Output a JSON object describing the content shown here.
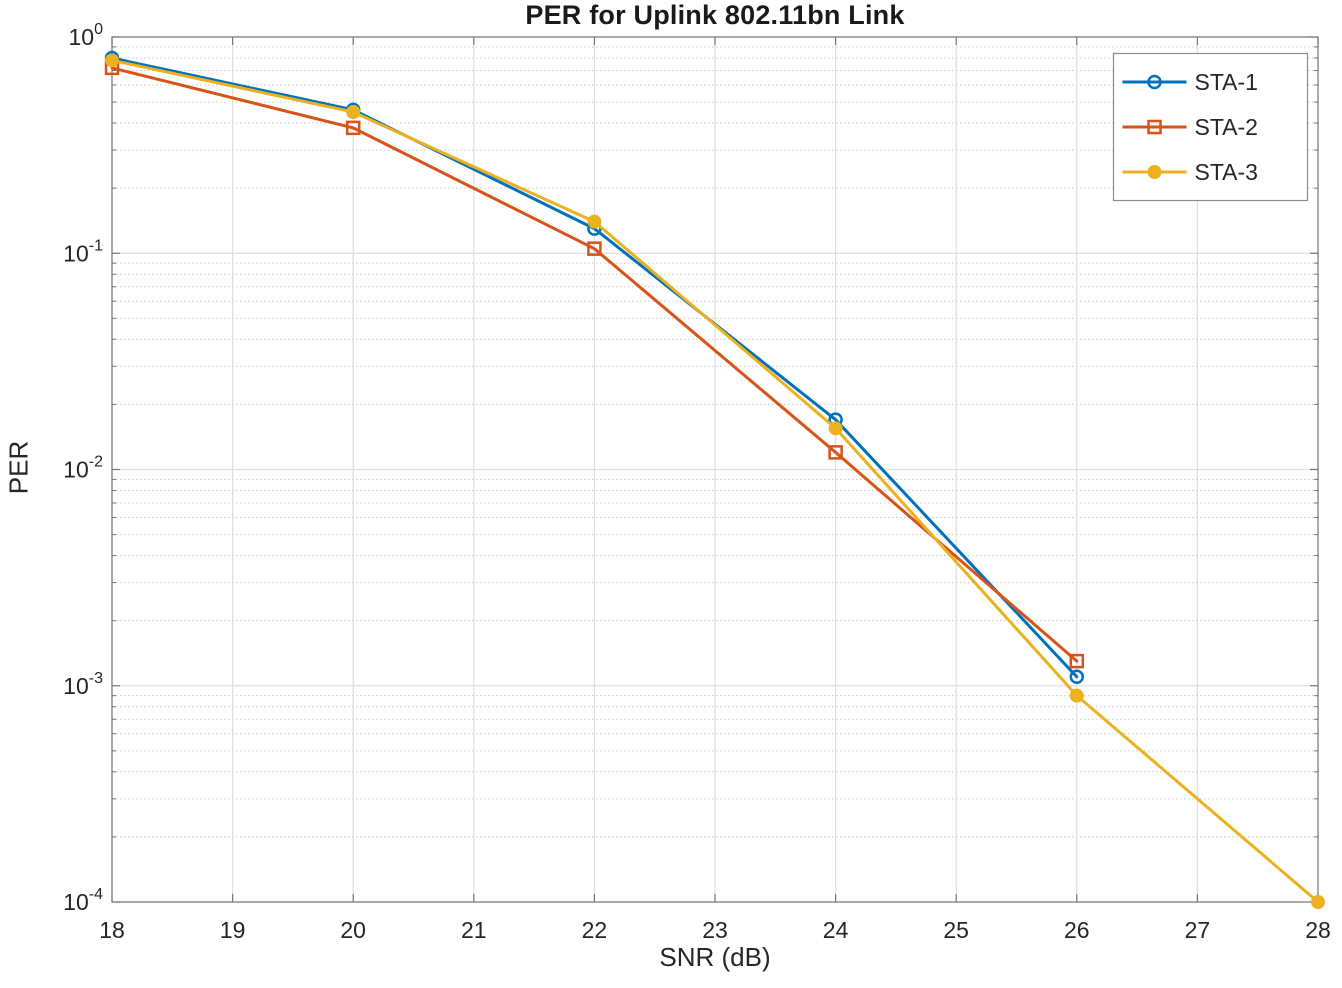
{
  "chart_data": {
    "type": "line",
    "title": "PER for Uplink 802.11bn Link",
    "xlabel": "SNR (dB)",
    "ylabel": "PER",
    "y_scale": "log",
    "xlim": [
      18,
      28
    ],
    "ylim_exponents": [
      -4,
      0
    ],
    "x_ticks": [
      18,
      19,
      20,
      21,
      22,
      23,
      24,
      25,
      26,
      27,
      28
    ],
    "y_tick_exponents": [
      0,
      -1,
      -2,
      -3,
      -4
    ],
    "grid": true,
    "minor_grid": true,
    "legend_position": "top-right",
    "axis_color": "#767676",
    "label_color": "#262626",
    "major_grid_color": "#dedede",
    "minor_grid_color": "#c9c9c9",
    "series": [
      {
        "name": "STA-1",
        "color": "#0072BD",
        "marker": "open-circle",
        "x": [
          18,
          20,
          22,
          24,
          26
        ],
        "y": [
          0.8,
          0.46,
          0.13,
          0.017,
          0.0011
        ]
      },
      {
        "name": "STA-2",
        "color": "#D95319",
        "marker": "open-square",
        "x": [
          18,
          20,
          22,
          24,
          26
        ],
        "y": [
          0.72,
          0.38,
          0.105,
          0.012,
          0.0013
        ]
      },
      {
        "name": "STA-3",
        "color": "#EDB120",
        "marker": "filled-circle",
        "x": [
          18,
          20,
          22,
          24,
          26,
          28
        ],
        "y": [
          0.78,
          0.45,
          0.14,
          0.0155,
          0.0009,
          0.0001
        ]
      }
    ]
  }
}
